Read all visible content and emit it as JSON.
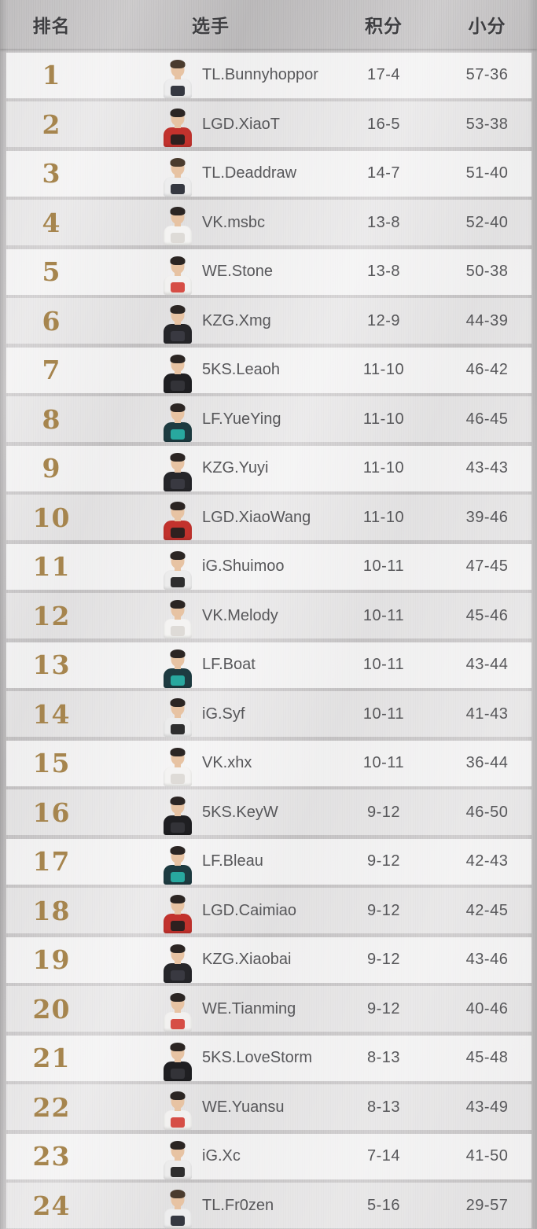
{
  "table": {
    "columns": [
      {
        "key": "rank",
        "label": "排名"
      },
      {
        "key": "player",
        "label": "选手"
      },
      {
        "key": "points",
        "label": "积分"
      },
      {
        "key": "minor",
        "label": "小分"
      }
    ],
    "players": [
      {
        "rank": "1",
        "name": "TL.Bunnyhoppor",
        "team": "TL",
        "points": "17-4",
        "minor": "57-36"
      },
      {
        "rank": "2",
        "name": "LGD.XiaoT",
        "team": "LGD",
        "points": "16-5",
        "minor": "53-38"
      },
      {
        "rank": "3",
        "name": "TL.Deaddraw",
        "team": "TL",
        "points": "14-7",
        "minor": "51-40"
      },
      {
        "rank": "4",
        "name": "VK.msbc",
        "team": "VK",
        "points": "13-8",
        "minor": "52-40"
      },
      {
        "rank": "5",
        "name": "WE.Stone",
        "team": "WE",
        "points": "13-8",
        "minor": "50-38"
      },
      {
        "rank": "6",
        "name": "KZG.Xmg",
        "team": "KZG",
        "points": "12-9",
        "minor": "44-39"
      },
      {
        "rank": "7",
        "name": "5KS.Leaoh",
        "team": "5KS",
        "points": "11-10",
        "minor": "46-42"
      },
      {
        "rank": "8",
        "name": "LF.YueYing",
        "team": "LF",
        "points": "11-10",
        "minor": "46-45"
      },
      {
        "rank": "9",
        "name": "KZG.Yuyi",
        "team": "KZG",
        "points": "11-10",
        "minor": "43-43"
      },
      {
        "rank": "10",
        "name": "LGD.XiaoWang",
        "team": "LGD",
        "points": "11-10",
        "minor": "39-46"
      },
      {
        "rank": "11",
        "name": "iG.Shuimoo",
        "team": "iG",
        "points": "10-11",
        "minor": "47-45"
      },
      {
        "rank": "12",
        "name": "VK.Melody",
        "team": "VK",
        "points": "10-11",
        "minor": "45-46"
      },
      {
        "rank": "13",
        "name": "LF.Boat",
        "team": "LF",
        "points": "10-11",
        "minor": "43-44"
      },
      {
        "rank": "14",
        "name": "iG.Syf",
        "team": "iG",
        "points": "10-11",
        "minor": "41-43"
      },
      {
        "rank": "15",
        "name": "VK.xhx",
        "team": "VK",
        "points": "10-11",
        "minor": "36-44"
      },
      {
        "rank": "16",
        "name": "5KS.KeyW",
        "team": "5KS",
        "points": "9-12",
        "minor": "46-50"
      },
      {
        "rank": "17",
        "name": "LF.Bleau",
        "team": "LF",
        "points": "9-12",
        "minor": "42-43"
      },
      {
        "rank": "18",
        "name": "LGD.Caimiao",
        "team": "LGD",
        "points": "9-12",
        "minor": "42-45"
      },
      {
        "rank": "19",
        "name": "KZG.Xiaobai",
        "team": "KZG",
        "points": "9-12",
        "minor": "43-46"
      },
      {
        "rank": "20",
        "name": "WE.Tianming",
        "team": "WE",
        "points": "9-12",
        "minor": "40-46"
      },
      {
        "rank": "21",
        "name": "5KS.LoveStorm",
        "team": "5KS",
        "points": "8-13",
        "minor": "45-48"
      },
      {
        "rank": "22",
        "name": "WE.Yuansu",
        "team": "WE",
        "points": "8-13",
        "minor": "43-49"
      },
      {
        "rank": "23",
        "name": "iG.Xc",
        "team": "iG",
        "points": "7-14",
        "minor": "41-50"
      },
      {
        "rank": "24",
        "name": "TL.Fr0zen",
        "team": "TL",
        "points": "5-16",
        "minor": "29-57"
      }
    ]
  },
  "teams": {
    "TL": {
      "shirt": "#ededee",
      "accent": "#20242e",
      "hair": "#4a3b2e",
      "skin": "#e7c3a3"
    },
    "LGD": {
      "shirt": "#c2322d",
      "accent": "#1e1e1e",
      "hair": "#2b2523",
      "skin": "#e7c3a3"
    },
    "VK": {
      "shirt": "#f4f3f2",
      "accent": "#dcd8d4",
      "hair": "#2b2523",
      "skin": "#e7c3a3"
    },
    "WE": {
      "shirt": "#f2f1f0",
      "accent": "#d33c33",
      "hair": "#2b2523",
      "skin": "#e7c3a3"
    },
    "KZG": {
      "shirt": "#26262a",
      "accent": "#3c3c44",
      "hair": "#2b2523",
      "skin": "#e7c3a3"
    },
    "5KS": {
      "shirt": "#1f1f22",
      "accent": "#35353b",
      "hair": "#2b2523",
      "skin": "#e7c3a3"
    },
    "LF": {
      "shirt": "#1d3b41",
      "accent": "#2ab5aa",
      "hair": "#2b2523",
      "skin": "#e7c3a3"
    },
    "iG": {
      "shirt": "#ececec",
      "accent": "#1a1a1a",
      "hair": "#2b2523",
      "skin": "#e7c3a3"
    }
  },
  "colors": {
    "rank_gold": "#a6854e",
    "row_text": "#57575a",
    "header_text": "#3e3e41",
    "background": "#c6c4c5"
  }
}
